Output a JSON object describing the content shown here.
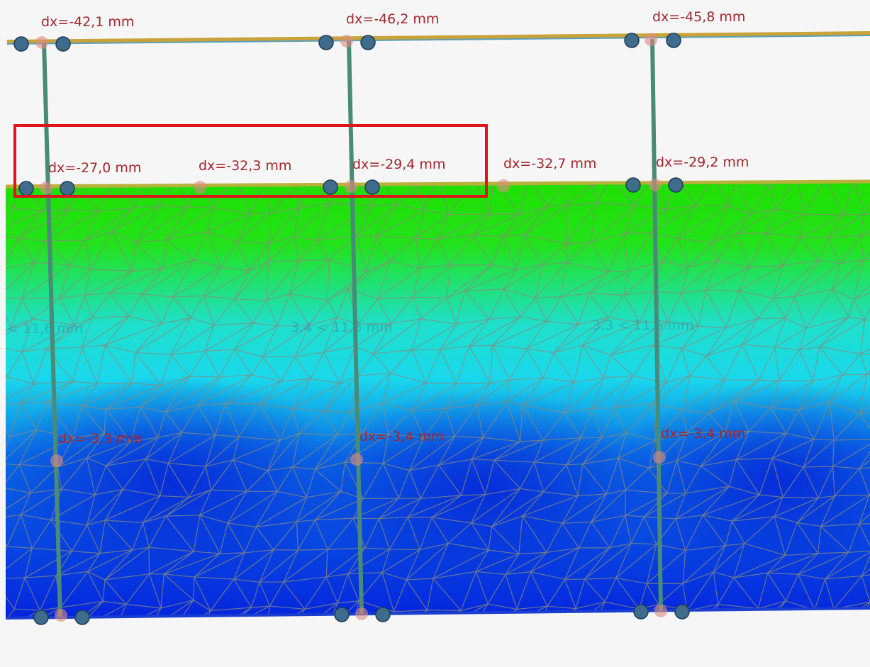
{
  "labels": {
    "top": [
      "dx=-42,1 mm",
      "dx=-46,2 mm",
      "dx=-45,8 mm"
    ],
    "middle": [
      "dx=-27,0 mm",
      "dx=-32,3 mm",
      "dx=-29,4 mm",
      "dx=-32,7 mm",
      "dx=-29,2 mm"
    ],
    "bottom": [
      "dx=-3,3 mm",
      "dx=-3,4 mm",
      "dx=-3,4 mm"
    ],
    "contour": [
      "< 11,6 mm",
      "3,4 < 11,6 mm",
      "3,3 < 11,6 mm"
    ]
  }
}
